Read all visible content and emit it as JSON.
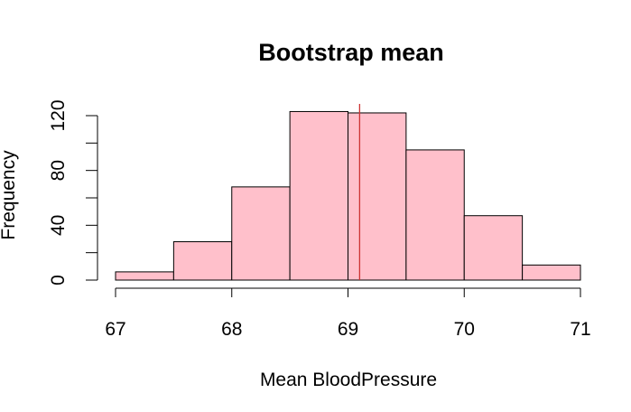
{
  "chart_data": {
    "type": "bar",
    "title": "Bootstrap mean",
    "xlabel": "Mean BloodPressure",
    "ylabel": "Frequency",
    "bins": [
      {
        "x0": 67.0,
        "x1": 67.5,
        "count": 6
      },
      {
        "x0": 67.5,
        "x1": 68.0,
        "count": 28
      },
      {
        "x0": 68.0,
        "x1": 68.5,
        "count": 68
      },
      {
        "x0": 68.5,
        "x1": 69.0,
        "count": 123
      },
      {
        "x0": 69.0,
        "x1": 69.5,
        "count": 122
      },
      {
        "x0": 69.5,
        "x1": 70.0,
        "count": 95
      },
      {
        "x0": 70.0,
        "x1": 70.5,
        "count": 47
      },
      {
        "x0": 70.5,
        "x1": 71.0,
        "count": 11
      }
    ],
    "mean_line": 69.1,
    "xticks": [
      67,
      68,
      69,
      70,
      71
    ],
    "xtick_labels": [
      "67",
      "68",
      "69",
      "70",
      "71"
    ],
    "yticks": [
      0,
      20,
      40,
      60,
      80,
      100,
      120
    ],
    "ytick_labels": [
      "0",
      "",
      "40",
      "",
      "80",
      "",
      "120"
    ],
    "xlim": [
      67,
      71
    ],
    "ylim": [
      0,
      120
    ],
    "bar_color": "#FFC0CB",
    "line_color": "#CD3333",
    "grid": false
  }
}
